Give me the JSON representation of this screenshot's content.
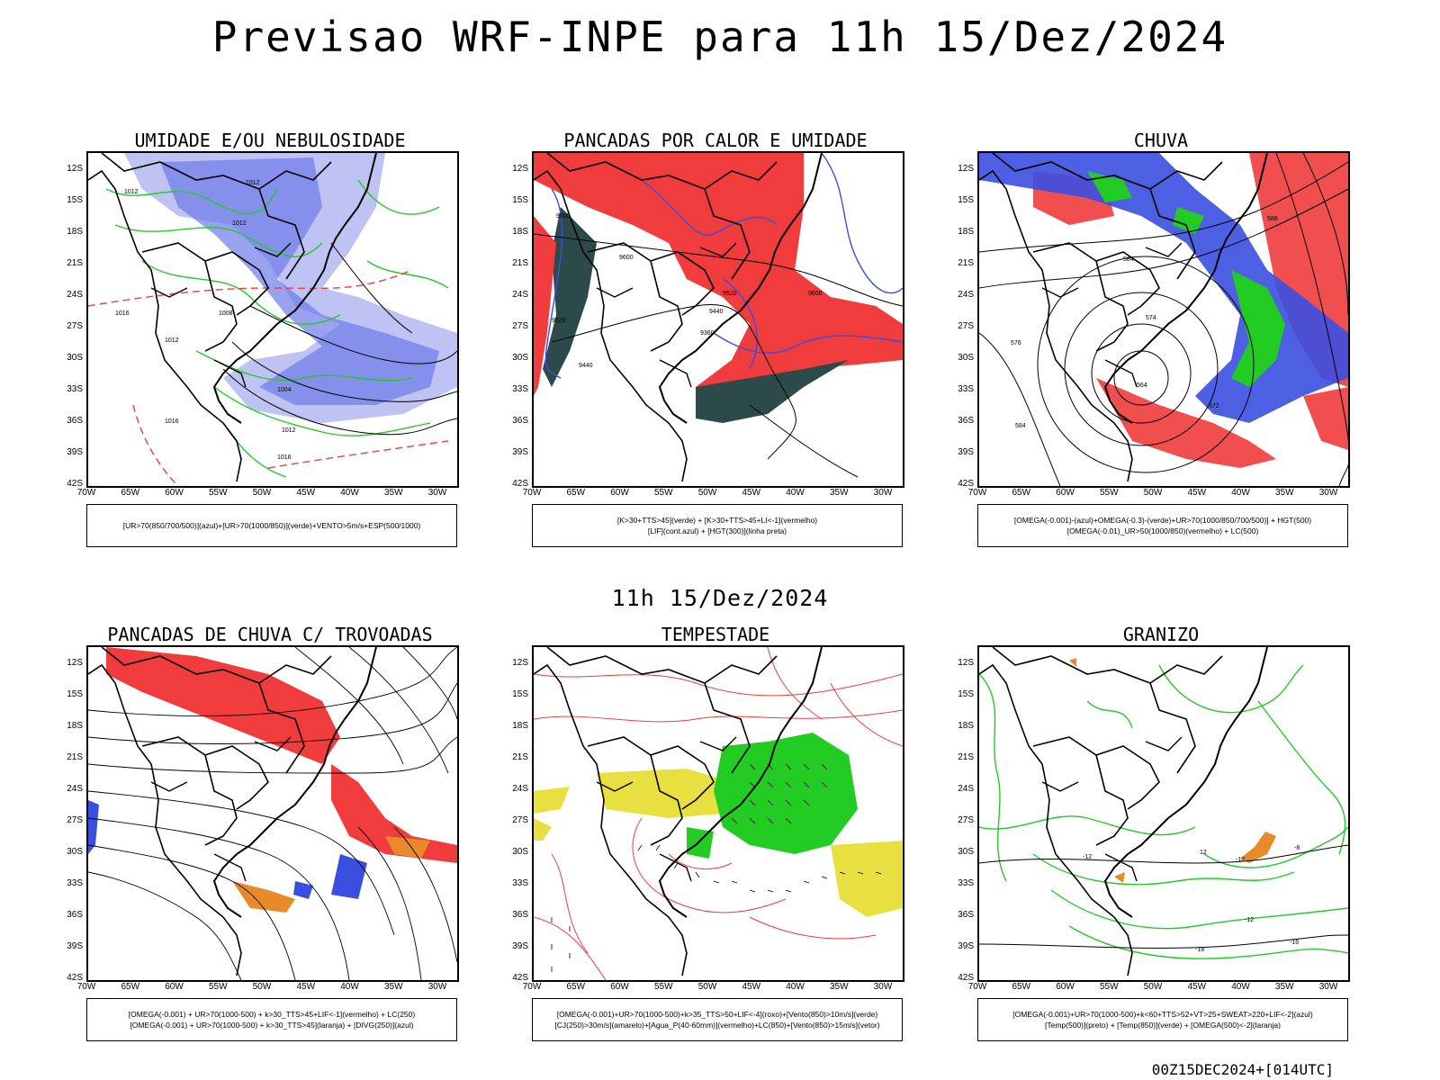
{
  "main_title": "Previsao WRF-INPE  para 11h 15/Dez/2024",
  "mid_title": "11h 15/Dez/2024",
  "footer": "00Z15DEC2024+[014UTC]",
  "lat_ticks": [
    "12S",
    "15S",
    "18S",
    "21S",
    "24S",
    "27S",
    "30S",
    "33S",
    "36S",
    "39S",
    "42S"
  ],
  "lon_ticks": [
    "70W",
    "65W",
    "60W",
    "55W",
    "50W",
    "45W",
    "40W",
    "35W",
    "30W"
  ],
  "colors": {
    "red": "#f03c3c",
    "blue": "#3a4fe0",
    "lightblue": "#aab0f0",
    "green": "#22cc22",
    "orange": "#e88a2a",
    "yellow": "#e8e040",
    "darkgreen": "#2d4a4a"
  },
  "panels": [
    {
      "title": "UMIDADE E/OU NEBULOSIDADE",
      "legend_line1": "[UR>70(850/700/500)](azul)+[UR>70(1000/850)](verde)+VENTO>5m/s+ESP(500/1000)",
      "legend_line2": ""
    },
    {
      "title": "PANCADAS POR CALOR E UMIDADE",
      "legend_line1": "[K>30+TTS>45](verde) + [K>30+TTS>45+LI<-1](vermelho)",
      "legend_line2": "[LIF](cont.azul) + [HGT(300)](linha preta)"
    },
    {
      "title": "CHUVA",
      "legend_line1": "[OMEGA(-0.001)-(azul)+OMEGA(-0.3)-(verde)+UR>70(1000/850/700/500)] + HGT(500)",
      "legend_line2": "[OMEGA(-0.01)_UR>50(1000/850)(vermelho) + LC(500)"
    },
    {
      "title": "PANCADAS DE CHUVA C/ TROVOADAS",
      "legend_line1": "[OMEGA(-0.001) + UR>70(1000-500) + k>30_TTS>45+LIF<-1](vermelho) + LC(250)",
      "legend_line2": "[OMEGA(-0.001) + UR>70(1000-500) + k>30_TTS>45](laranja) + [DIVG(250)](azul)"
    },
    {
      "title": "TEMPESTADE",
      "legend_line1": "[OMEGA(-0.001)+UR>70(1000-500)+k>35_TTS>50+LIF<-4](roxo)+[Vento(850)>10m/s](verde)",
      "legend_line2": "[CJ(250)>30m/s](amarelo)+[Agua_P(40-60mm)](vermelho)+LC(850)+[Vento(850)>15m/s](vetor)"
    },
    {
      "title": "GRANIZO",
      "legend_line1": "[OMEGA(-0.001)+UR>70(1000-500)+k<60+TTS>52+VT>25+SWEAT>220+LIF<-2](azul)",
      "legend_line2": "[Temp(500)](preto) + [Temp(850)](verde) + [OMEGA(500)<-2](laranja)"
    }
  ],
  "contour_labels": {
    "p1": [
      "1012",
      "1012",
      "1012",
      "1008",
      "1016",
      "1012",
      "1004",
      "1016",
      "1012",
      "1016"
    ],
    "p2": [
      "9600",
      "9600",
      "9520",
      "9440",
      "9360",
      "9440",
      "9600",
      "9520"
    ],
    "p3": [
      "588",
      "584",
      "576",
      "574",
      "564",
      "584",
      "572"
    ],
    "p6": [
      "-12",
      "-12",
      "12",
      "-18",
      "-16",
      "-8",
      "-12"
    ]
  }
}
